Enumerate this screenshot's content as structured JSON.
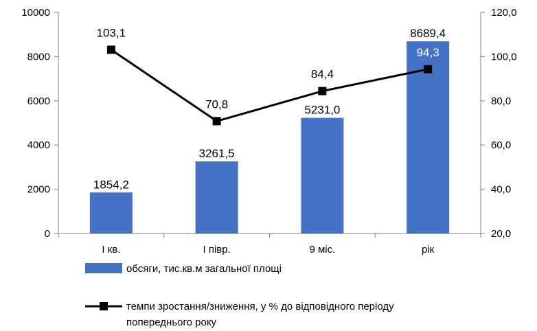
{
  "chart_data": {
    "type": "bar+line",
    "categories": [
      "І кв.",
      "І півр.",
      "9 міс.",
      "рік"
    ],
    "series": [
      {
        "name": "обсяги,  тис.кв.м загальної  площі",
        "type": "bar",
        "axis": "left",
        "values": [
          1854.2,
          3261.5,
          5231.0,
          8689.4
        ],
        "labels": [
          "1854,2",
          "3261,5",
          "5231,0",
          "8689,4"
        ],
        "color": "#4472C4"
      },
      {
        "name": "темпи зростання/зниження,   у % до відповідного   періоду попереднього  року",
        "name_lines": [
          "темпи зростання/зниження,   у % до відповідного   періоду",
          "попереднього  року"
        ],
        "type": "line",
        "axis": "right",
        "values": [
          103.1,
          70.8,
          84.4,
          94.3
        ],
        "labels": [
          "103,1",
          "70,8",
          "84,4",
          "94,3"
        ],
        "color": "#000000"
      }
    ],
    "left_axis": {
      "ylim": [
        0,
        10000
      ],
      "ticks": [
        0,
        2000,
        4000,
        6000,
        8000,
        10000
      ],
      "tick_labels": [
        "0",
        "2000",
        "4000",
        "6000",
        "8000",
        "10000"
      ]
    },
    "right_axis": {
      "ylim": [
        20,
        120
      ],
      "ticks": [
        20,
        40,
        60,
        80,
        100,
        120
      ],
      "tick_labels": [
        "20,0",
        "40,0",
        "60,0",
        "80,0",
        "100,0",
        "120,0"
      ]
    },
    "grid": false,
    "legend_position": "bottom"
  }
}
